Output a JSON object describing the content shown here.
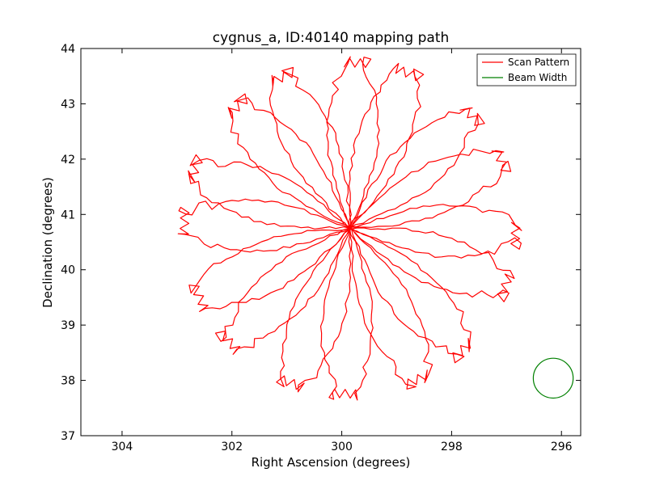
{
  "chart_data": {
    "type": "line",
    "title": "cygnus_a, ID:40140 mapping path",
    "xlabel": "Right Ascension (degrees)",
    "ylabel": "Declination (degrees)",
    "xlim": [
      304.75,
      295.65
    ],
    "ylim": [
      37,
      44
    ],
    "x_ticks": [
      304,
      302,
      300,
      298,
      296
    ],
    "y_ticks": [
      37,
      38,
      39,
      40,
      41,
      42,
      43,
      44
    ],
    "x_tick_labels": [
      "304",
      "302",
      "300",
      "298",
      "296"
    ],
    "y_tick_labels": [
      "37",
      "38",
      "39",
      "40",
      "41",
      "42",
      "43",
      "44"
    ],
    "grid": false,
    "legend": {
      "placement": "top-right"
    },
    "colors": {
      "scan": "#ff0000",
      "beam": "#008000"
    },
    "series": [
      {
        "name": "Scan Pattern",
        "kind": "line",
        "pattern": {
          "center": [
            299.85,
            40.75
          ],
          "petals": 16,
          "length_deg": 3.1,
          "half_width_deg": 0.52,
          "start_angle_deg": 180
        }
      },
      {
        "name": "Beam Width",
        "kind": "circle",
        "center": [
          296.15,
          38.04
        ],
        "radius_deg": 0.36
      }
    ]
  }
}
